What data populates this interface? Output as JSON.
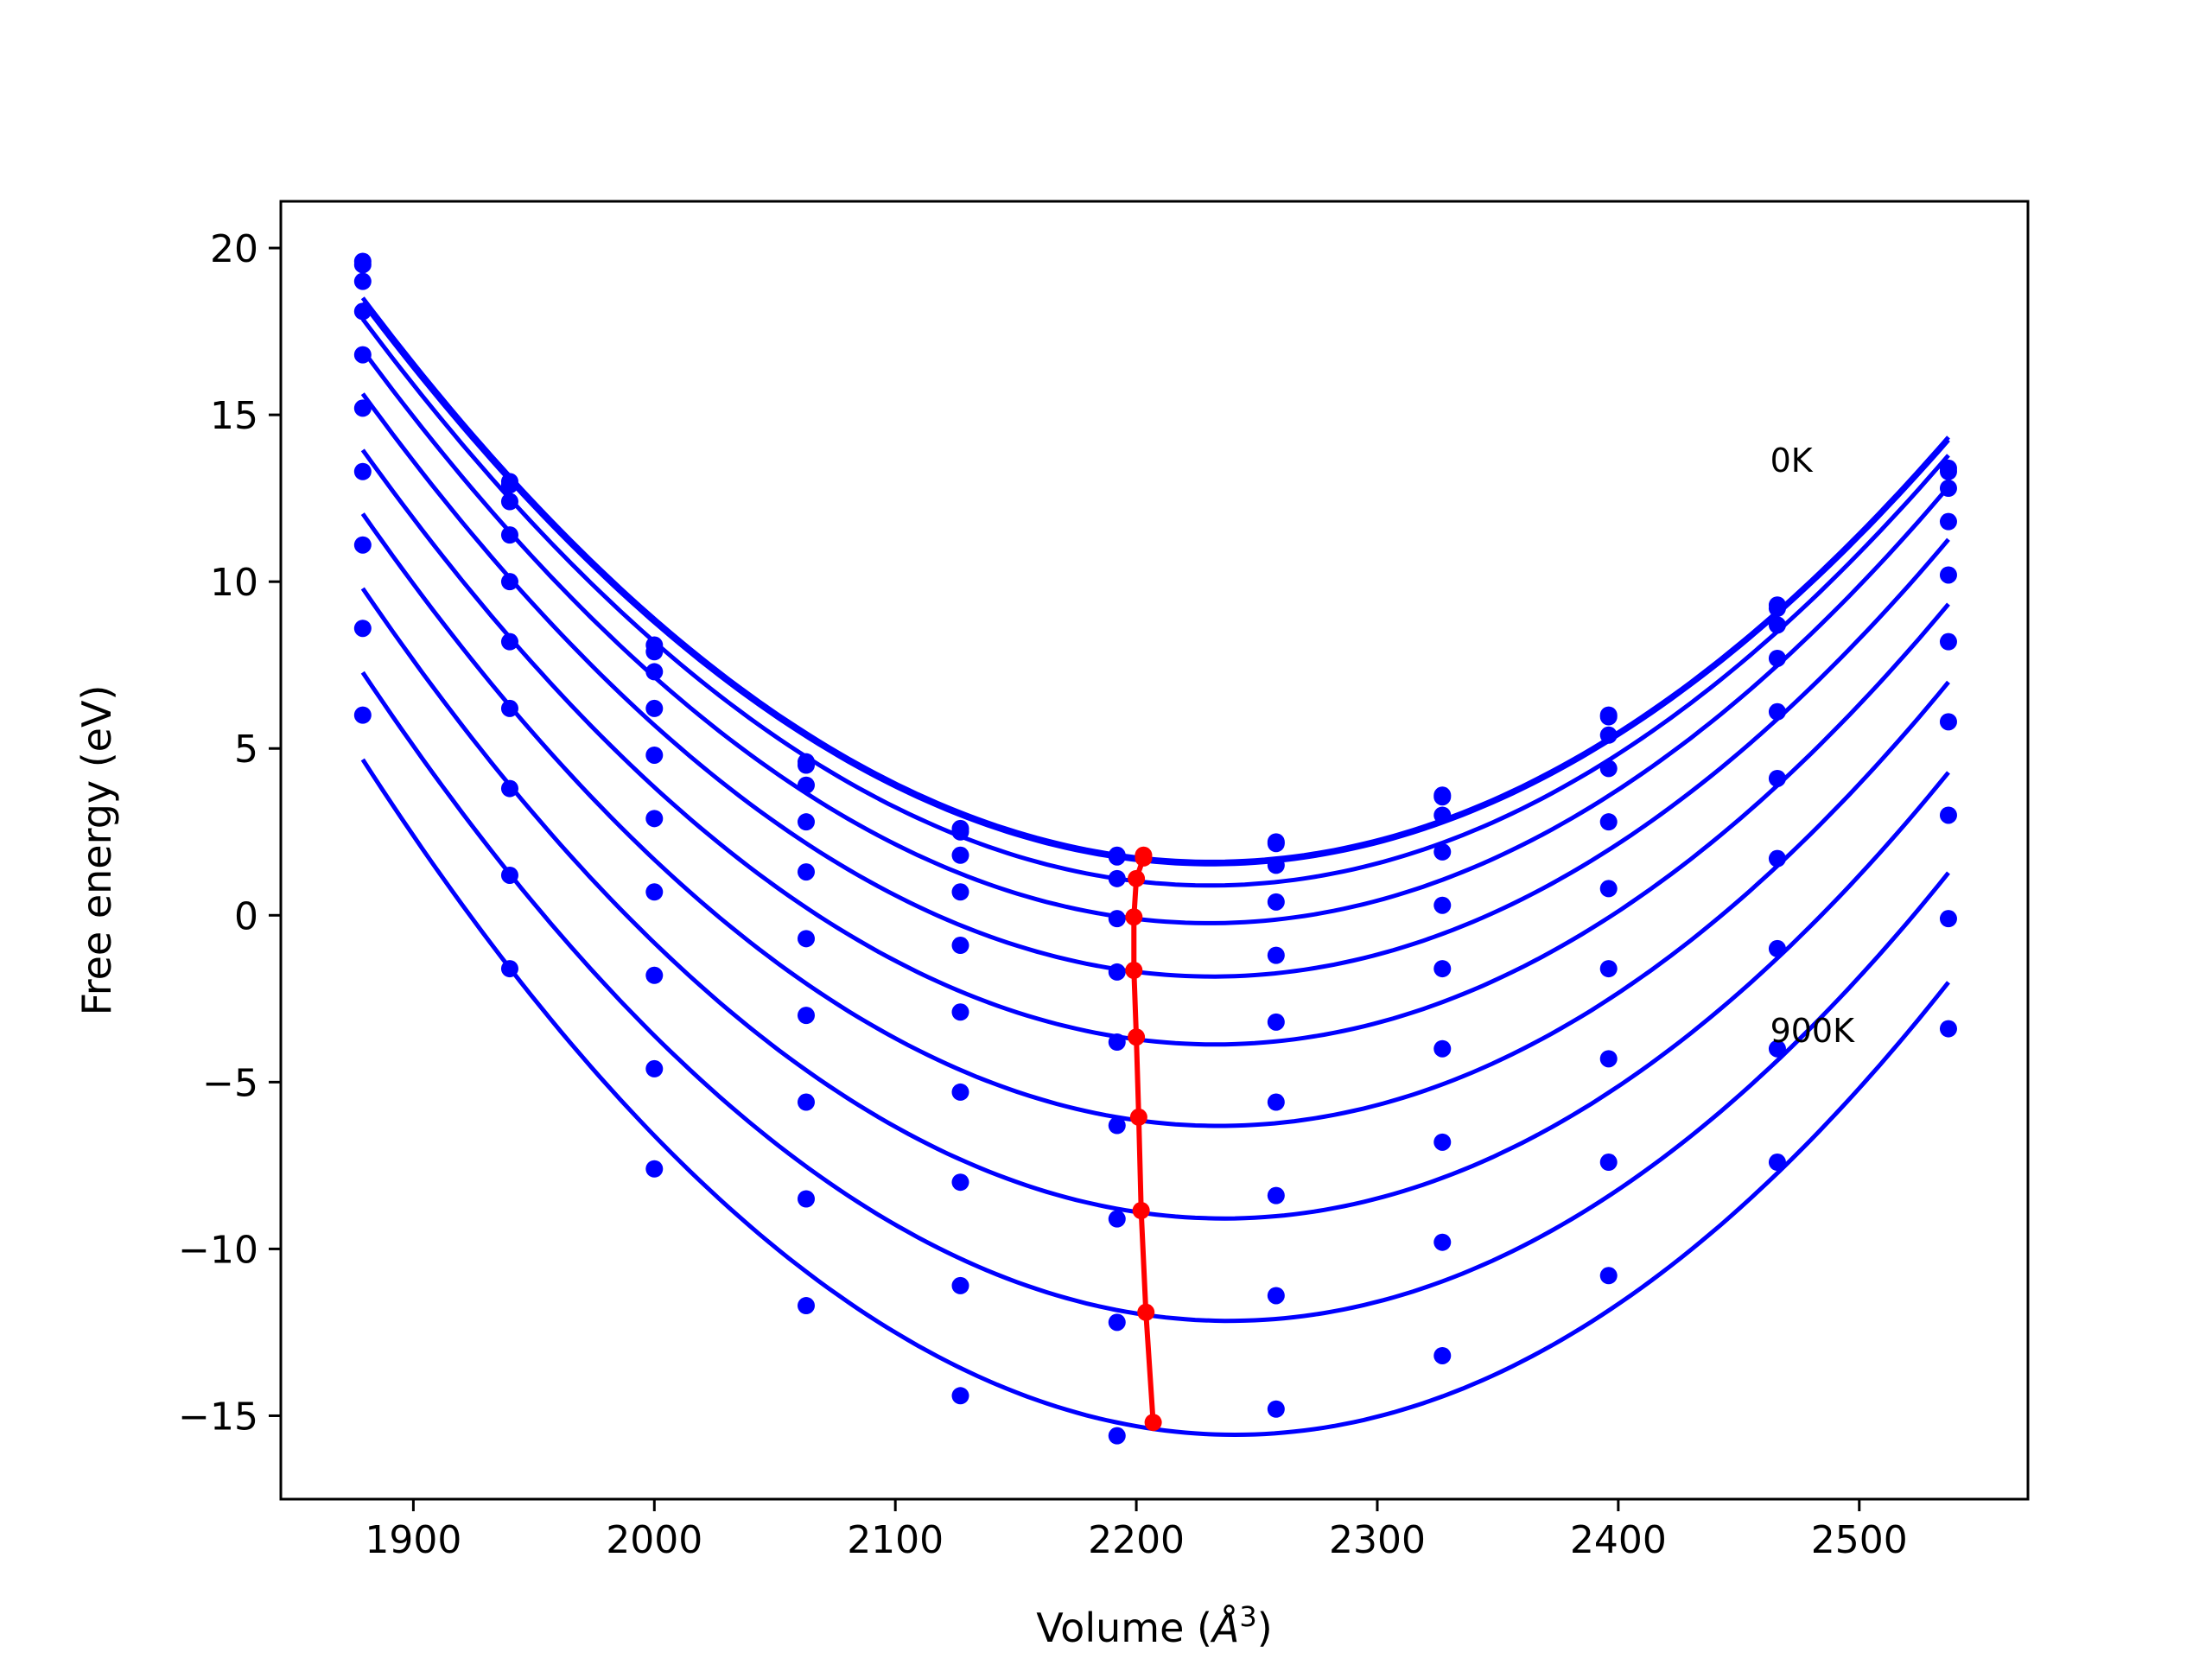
{
  "chart_data": {
    "type": "line",
    "title": "",
    "xlabel": "Volume (Å³)",
    "xlabel_parts": {
      "text": "Volume (",
      "symbol": "Å",
      "superscript": "3",
      "close": ")"
    },
    "ylabel": "Free energy (eV)",
    "xlim": [
      1845,
      2570
    ],
    "ylim": [
      -17.5,
      21.4
    ],
    "xticks": [
      1900,
      2000,
      2100,
      2200,
      2300,
      2400,
      2500
    ],
    "xtick_labels": [
      "1900",
      "2000",
      "2100",
      "2200",
      "2300",
      "2400",
      "2500"
    ],
    "yticks": [
      -15,
      -10,
      -5,
      0,
      5,
      10,
      15,
      20
    ],
    "ytick_labels": [
      "−15",
      "−10",
      "−5",
      "0",
      "5",
      "10",
      "15",
      "20"
    ],
    "grid": false,
    "legend": "none",
    "colors": {
      "curves": "#0000ff",
      "minima": "#ff0000"
    },
    "volumes": [
      1879,
      1940,
      2000,
      2063,
      2127,
      2192,
      2258,
      2327,
      2396,
      2466,
      2537
    ],
    "series": [
      {
        "points": [
          19.6,
          13.0,
          8.1,
          4.6,
          2.6,
          1.8,
          2.2,
          3.6,
          6.0,
          9.3,
          13.4
        ],
        "vmin": 2203,
        "fmin": 1.8
      },
      {
        "points": [
          19.5,
          12.9,
          7.9,
          4.5,
          2.5,
          1.75,
          2.15,
          3.55,
          5.95,
          9.2,
          13.3
        ],
        "vmin": 2203,
        "fmin": 1.72
      },
      {
        "points": [
          19.0,
          12.4,
          7.3,
          3.9,
          1.8,
          1.1,
          1.5,
          3.0,
          5.4,
          8.7,
          12.8
        ],
        "vmin": 2200,
        "fmin": 1.1
      },
      {
        "points": [
          18.1,
          11.4,
          6.2,
          2.8,
          0.7,
          -0.1,
          0.4,
          1.9,
          4.4,
          7.7,
          11.8
        ],
        "vmin": 2199,
        "fmin": -0.05
      },
      {
        "points": [
          16.8,
          10.0,
          4.8,
          1.3,
          -0.9,
          -1.7,
          -1.2,
          0.3,
          2.8,
          6.1,
          10.2
        ],
        "vmin": 2199,
        "fmin": -1.65
      },
      {
        "points": [
          15.2,
          8.2,
          2.9,
          -0.7,
          -2.9,
          -3.8,
          -3.2,
          -1.6,
          0.8,
          4.1,
          8.2
        ],
        "vmin": 2200,
        "fmin": -3.65
      },
      {
        "points": [
          13.3,
          6.2,
          0.7,
          -3.0,
          -5.3,
          -6.3,
          -5.6,
          -4.0,
          -1.6,
          1.7,
          5.8
        ],
        "vmin": 2201,
        "fmin": -6.05
      },
      {
        "points": [
          11.1,
          3.8,
          -1.8,
          -5.6,
          -8.0,
          -9.1,
          -8.4,
          -6.8,
          -4.3,
          -1.0,
          3.0
        ],
        "vmin": 2202,
        "fmin": -8.85
      },
      {
        "points": [
          8.6,
          1.2,
          -4.6,
          -8.5,
          -11.1,
          -12.2,
          -11.4,
          -9.8,
          -7.4,
          -4.0,
          -0.1
        ],
        "vmin": 2204,
        "fmin": -11.9
      },
      {
        "points": [
          6.0,
          -1.6,
          -7.6,
          -11.7,
          -14.4,
          -15.6,
          -14.8,
          -13.2,
          -10.8,
          -7.4,
          -3.4
        ],
        "vmin": 2207,
        "fmin": -15.2
      }
    ],
    "annotations": [
      {
        "text": "0K",
        "x": 2463,
        "y": 13.3
      },
      {
        "text": "900K",
        "x": 2463,
        "y": -3.8
      }
    ]
  }
}
